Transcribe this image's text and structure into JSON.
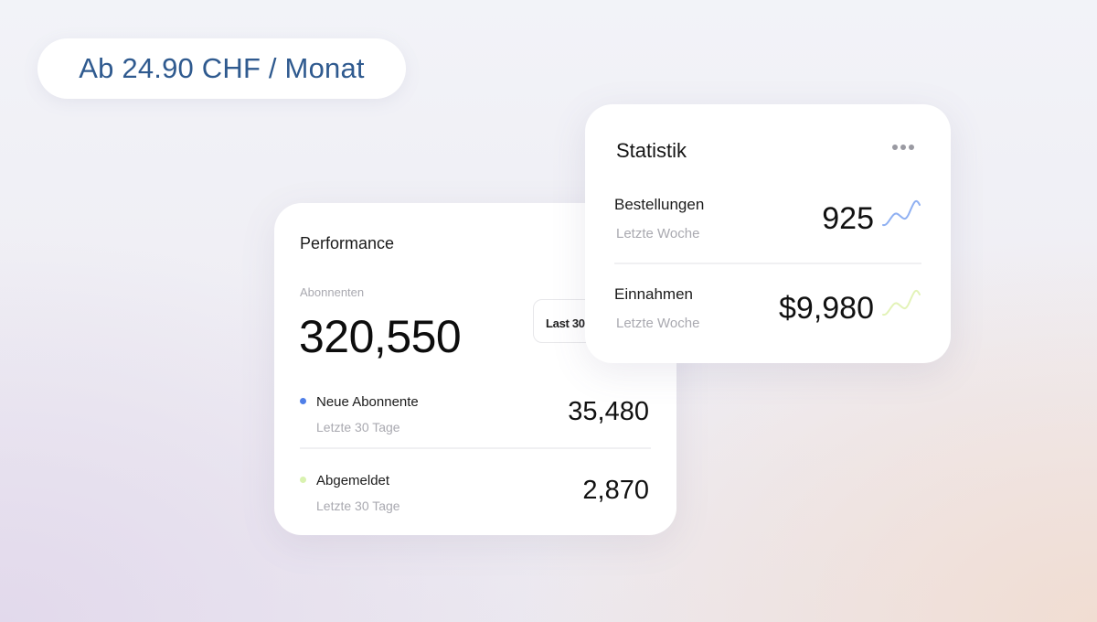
{
  "price_banner": {
    "text": "Ab 24.90 CHF / Monat"
  },
  "performance": {
    "title": "Performance",
    "subscribers_label": "Abonnenten",
    "subscribers_value": "320,550",
    "range_label": "Last 30 Days",
    "rows": [
      {
        "label": "Neue Abonnente",
        "sub": "Letzte 30 Tage",
        "value": "35,480",
        "dot_color": "#4f7fe8"
      },
      {
        "label": "Abgemeldet",
        "sub": "Letzte 30 Tage",
        "value": "2,870",
        "dot_color": "#d9f2b0"
      }
    ]
  },
  "statistik": {
    "title": "Statistik",
    "more_icon": "ellipsis-icon",
    "rows": [
      {
        "label": "Bestellungen",
        "sub": "Letzte Woche",
        "value": "925",
        "spark_color": "#8fb0f2",
        "icon": "sparkline-icon"
      },
      {
        "label": "Einnahmen",
        "sub": "Letzte Woche",
        "value": "$9,980",
        "spark_color": "#e3f3b8",
        "icon": "sparkline-icon"
      }
    ]
  }
}
